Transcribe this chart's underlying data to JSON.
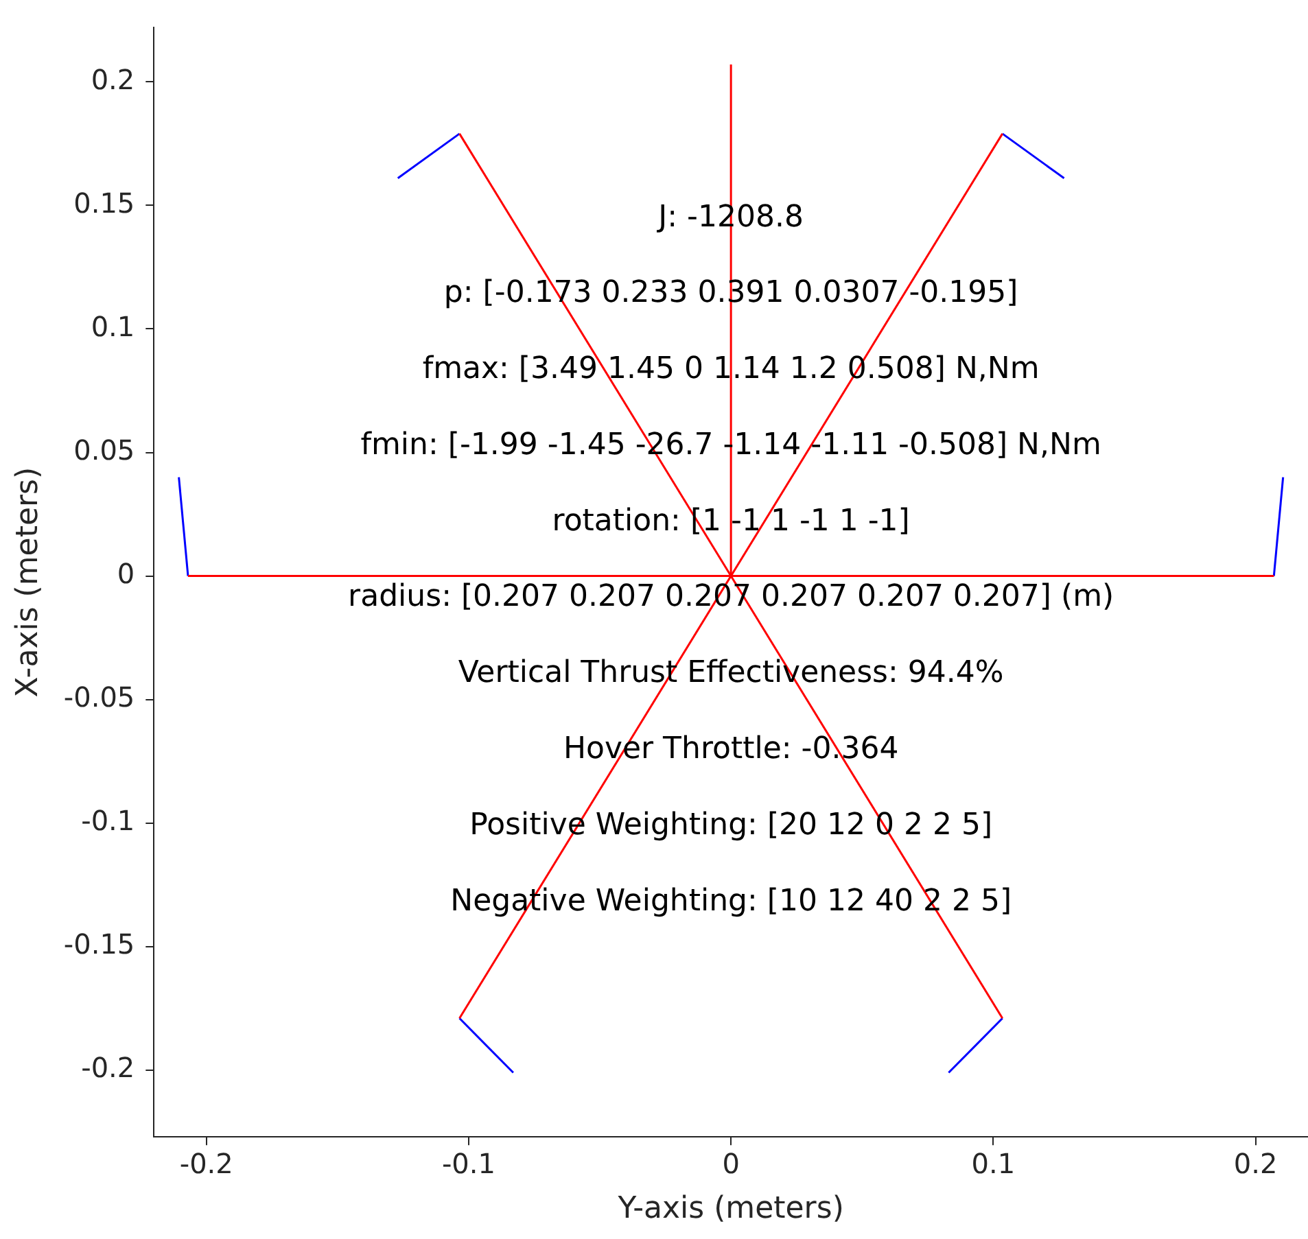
{
  "chart_data": {
    "type": "line",
    "xlabel": "Y-axis (meters)",
    "ylabel": "X-axis (meters)",
    "xlim": [
      -0.22,
      0.22
    ],
    "ylim": [
      -0.227,
      0.222
    ],
    "xticks": [
      -0.2,
      -0.1,
      0,
      0.1,
      0.2
    ],
    "yticks": [
      -0.2,
      -0.15,
      -0.1,
      -0.05,
      0,
      0.05,
      0.1,
      0.15,
      0.2
    ],
    "marker": "none",
    "line_style": "solid",
    "series": [
      {
        "color": "#ff0000",
        "x": [
          -0.207,
          0.207
        ],
        "values": [
          0,
          0
        ]
      },
      {
        "color": "#ff0000",
        "x": [
          -0.1035,
          0.1035
        ],
        "values": [
          -0.179,
          0.179
        ]
      },
      {
        "color": "#ff0000",
        "x": [
          -0.1035,
          0.1035
        ],
        "values": [
          0.179,
          -0.179
        ]
      },
      {
        "color": "#ff0000",
        "x": [
          0,
          0
        ],
        "values": [
          0,
          0.207
        ]
      },
      {
        "color": "#0000ff",
        "x": [
          0.207,
          0.2105
        ],
        "values": [
          0,
          0.04
        ]
      },
      {
        "color": "#0000ff",
        "x": [
          -0.207,
          -0.2105
        ],
        "values": [
          0,
          0.04
        ]
      },
      {
        "color": "#0000ff",
        "x": [
          0.1035,
          0.127
        ],
        "values": [
          0.179,
          0.161
        ]
      },
      {
        "color": "#0000ff",
        "x": [
          -0.1035,
          -0.127
        ],
        "values": [
          0.179,
          0.161
        ]
      },
      {
        "color": "#0000ff",
        "x": [
          0.1035,
          0.083
        ],
        "values": [
          -0.179,
          -0.201
        ]
      },
      {
        "color": "#0000ff",
        "x": [
          -0.1035,
          -0.083
        ],
        "values": [
          -0.179,
          -0.201
        ]
      }
    ],
    "annotations": [
      "J: -1208.8",
      "p: [-0.173 0.233 0.391 0.0307 -0.195]",
      "fmax: [3.49 1.45 0 1.14 1.2 0.508] N,Nm",
      "fmin: [-1.99 -1.45 -26.7 -1.14 -1.11 -0.508] N,Nm",
      "rotation: [1 -1 1 -1 1 -1]",
      "radius: [0.207 0.207 0.207 0.207 0.207 0.207] (m)",
      "Vertical Thrust Effectiveness: 94.4%",
      "Hover Throttle: -0.364",
      "Positive Weighting: [20 12 0 2 2 5]",
      "Negative Weighting: [10 12 40 2 2 5]"
    ]
  }
}
